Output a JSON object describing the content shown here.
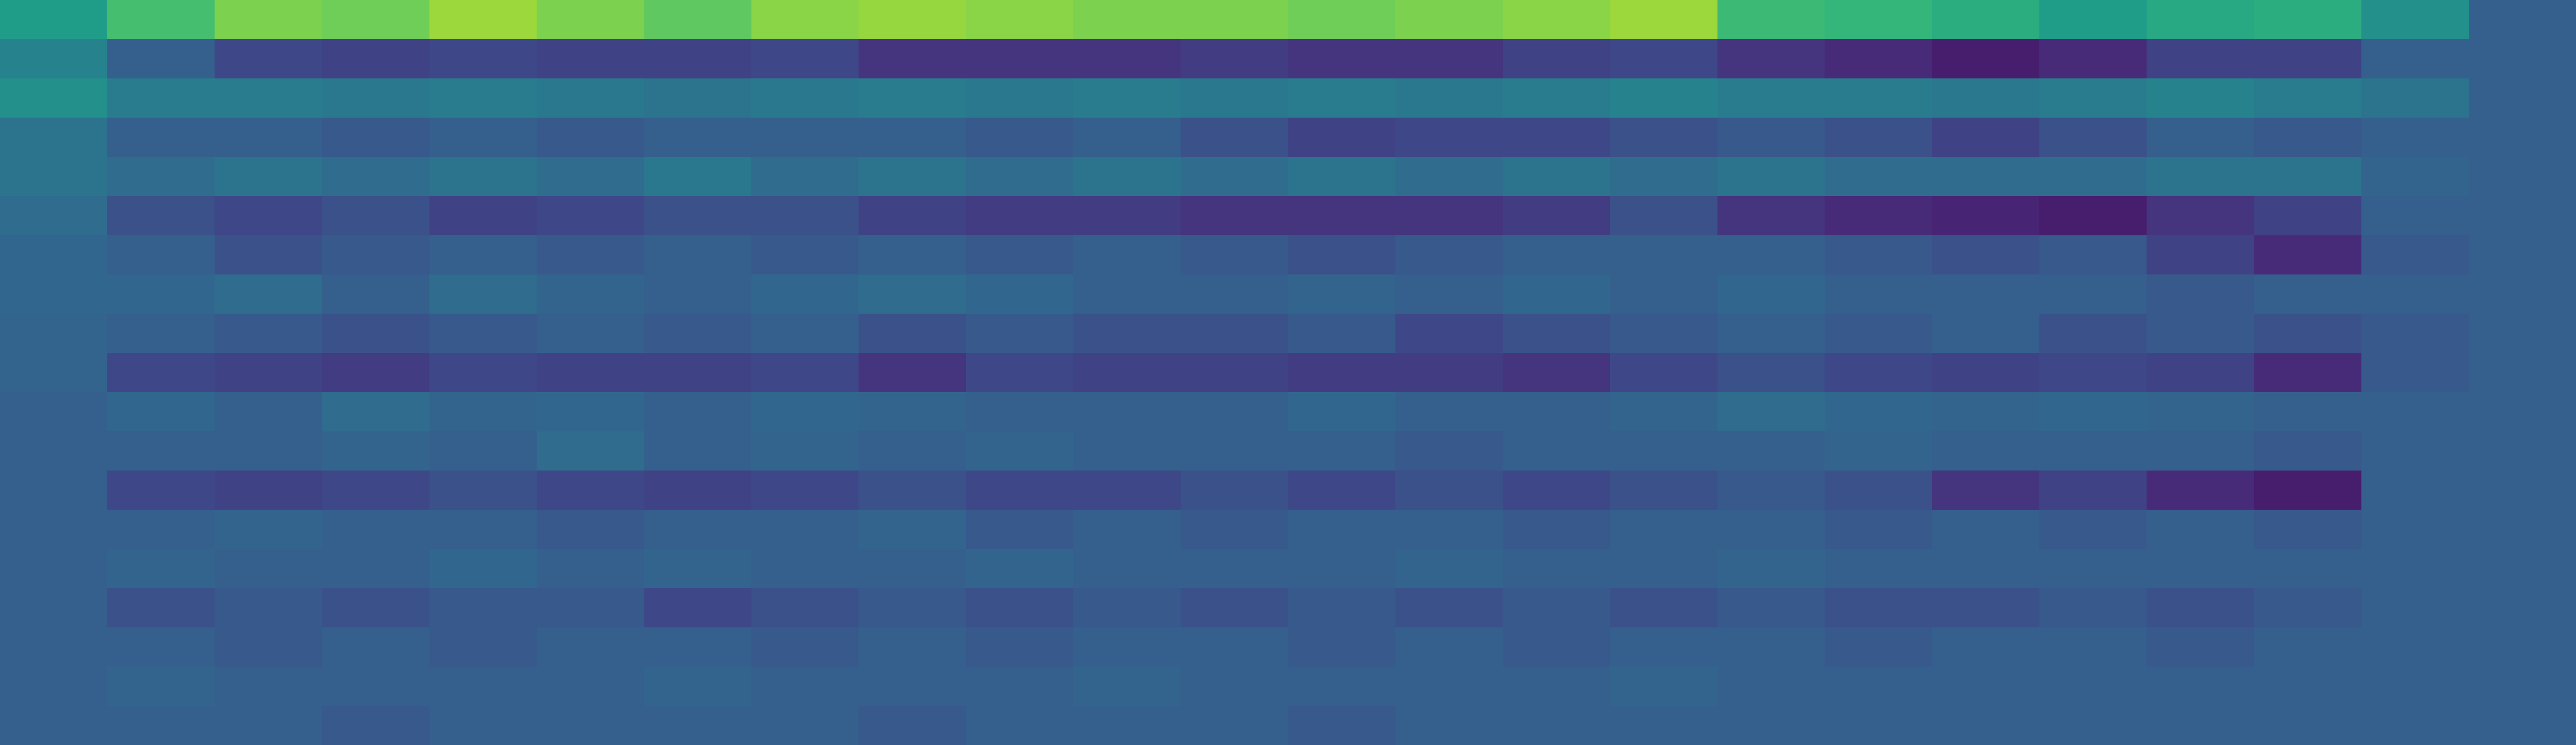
{
  "chart_data": {
    "type": "heatmap",
    "colormap": "viridis",
    "zlim": [
      0,
      1
    ],
    "values": [
      [
        0.55,
        0.7,
        0.8,
        0.78,
        0.85,
        0.8,
        0.75,
        0.82,
        0.84,
        0.82,
        0.8,
        0.8,
        0.78,
        0.8,
        0.82,
        0.85,
        0.68,
        0.66,
        0.62,
        0.55,
        0.6,
        0.62,
        0.5,
        0.3
      ],
      [
        0.45,
        0.3,
        0.22,
        0.2,
        0.22,
        0.2,
        0.2,
        0.22,
        0.15,
        0.15,
        0.15,
        0.18,
        0.15,
        0.15,
        0.2,
        0.22,
        0.15,
        0.12,
        0.08,
        0.12,
        0.2,
        0.2,
        0.3,
        0.3
      ],
      [
        0.5,
        0.42,
        0.42,
        0.4,
        0.42,
        0.4,
        0.38,
        0.4,
        0.42,
        0.4,
        0.42,
        0.4,
        0.42,
        0.4,
        0.42,
        0.45,
        0.42,
        0.42,
        0.4,
        0.42,
        0.45,
        0.42,
        0.38,
        0.3
      ],
      [
        0.38,
        0.3,
        0.3,
        0.28,
        0.3,
        0.28,
        0.3,
        0.3,
        0.3,
        0.28,
        0.3,
        0.25,
        0.2,
        0.22,
        0.22,
        0.25,
        0.28,
        0.25,
        0.2,
        0.25,
        0.3,
        0.28,
        0.3,
        0.3
      ],
      [
        0.38,
        0.35,
        0.38,
        0.35,
        0.38,
        0.35,
        0.4,
        0.35,
        0.38,
        0.35,
        0.38,
        0.35,
        0.38,
        0.35,
        0.38,
        0.35,
        0.38,
        0.35,
        0.35,
        0.35,
        0.38,
        0.38,
        0.32,
        0.3
      ],
      [
        0.35,
        0.25,
        0.22,
        0.25,
        0.2,
        0.22,
        0.25,
        0.25,
        0.2,
        0.18,
        0.18,
        0.15,
        0.15,
        0.15,
        0.18,
        0.25,
        0.15,
        0.12,
        0.1,
        0.08,
        0.15,
        0.2,
        0.3,
        0.3
      ],
      [
        0.33,
        0.3,
        0.25,
        0.28,
        0.3,
        0.28,
        0.3,
        0.28,
        0.3,
        0.28,
        0.3,
        0.28,
        0.25,
        0.28,
        0.3,
        0.3,
        0.3,
        0.28,
        0.25,
        0.28,
        0.2,
        0.12,
        0.28,
        0.3
      ],
      [
        0.33,
        0.33,
        0.35,
        0.3,
        0.35,
        0.32,
        0.3,
        0.33,
        0.35,
        0.33,
        0.3,
        0.3,
        0.32,
        0.3,
        0.33,
        0.3,
        0.33,
        0.3,
        0.3,
        0.3,
        0.28,
        0.3,
        0.3,
        0.3
      ],
      [
        0.32,
        0.3,
        0.28,
        0.25,
        0.28,
        0.3,
        0.28,
        0.3,
        0.25,
        0.28,
        0.25,
        0.25,
        0.28,
        0.22,
        0.25,
        0.28,
        0.3,
        0.28,
        0.3,
        0.25,
        0.28,
        0.25,
        0.28,
        0.3
      ],
      [
        0.32,
        0.22,
        0.2,
        0.18,
        0.22,
        0.2,
        0.2,
        0.22,
        0.15,
        0.22,
        0.2,
        0.2,
        0.18,
        0.18,
        0.15,
        0.22,
        0.25,
        0.22,
        0.2,
        0.22,
        0.2,
        0.12,
        0.28,
        0.3
      ],
      [
        0.3,
        0.33,
        0.3,
        0.35,
        0.32,
        0.33,
        0.3,
        0.33,
        0.32,
        0.3,
        0.3,
        0.3,
        0.33,
        0.3,
        0.3,
        0.32,
        0.35,
        0.33,
        0.32,
        0.33,
        0.32,
        0.3,
        0.3,
        0.3
      ],
      [
        0.3,
        0.3,
        0.3,
        0.32,
        0.3,
        0.35,
        0.3,
        0.32,
        0.3,
        0.32,
        0.3,
        0.3,
        0.3,
        0.28,
        0.3,
        0.3,
        0.3,
        0.32,
        0.3,
        0.3,
        0.3,
        0.28,
        0.3,
        0.3
      ],
      [
        0.3,
        0.22,
        0.2,
        0.22,
        0.25,
        0.22,
        0.2,
        0.22,
        0.25,
        0.22,
        0.22,
        0.25,
        0.22,
        0.25,
        0.22,
        0.25,
        0.28,
        0.25,
        0.15,
        0.2,
        0.12,
        0.08,
        0.3,
        0.3
      ],
      [
        0.3,
        0.3,
        0.32,
        0.3,
        0.3,
        0.28,
        0.3,
        0.3,
        0.32,
        0.28,
        0.3,
        0.28,
        0.3,
        0.3,
        0.28,
        0.3,
        0.3,
        0.28,
        0.3,
        0.28,
        0.3,
        0.28,
        0.3,
        0.3
      ],
      [
        0.3,
        0.32,
        0.3,
        0.3,
        0.33,
        0.3,
        0.32,
        0.3,
        0.3,
        0.32,
        0.3,
        0.3,
        0.3,
        0.32,
        0.3,
        0.3,
        0.32,
        0.3,
        0.3,
        0.3,
        0.3,
        0.3,
        0.3,
        0.3
      ],
      [
        0.3,
        0.25,
        0.28,
        0.25,
        0.28,
        0.28,
        0.22,
        0.25,
        0.28,
        0.25,
        0.28,
        0.25,
        0.28,
        0.25,
        0.28,
        0.25,
        0.28,
        0.25,
        0.25,
        0.28,
        0.25,
        0.28,
        0.3,
        0.3
      ],
      [
        0.3,
        0.3,
        0.28,
        0.3,
        0.28,
        0.3,
        0.3,
        0.28,
        0.3,
        0.28,
        0.3,
        0.3,
        0.28,
        0.3,
        0.28,
        0.3,
        0.3,
        0.28,
        0.3,
        0.3,
        0.28,
        0.3,
        0.3,
        0.3
      ],
      [
        0.3,
        0.32,
        0.3,
        0.3,
        0.3,
        0.3,
        0.32,
        0.3,
        0.3,
        0.3,
        0.32,
        0.3,
        0.3,
        0.3,
        0.3,
        0.32,
        0.3,
        0.3,
        0.3,
        0.3,
        0.3,
        0.3,
        0.3,
        0.3
      ],
      [
        0.3,
        0.3,
        0.3,
        0.28,
        0.3,
        0.3,
        0.3,
        0.3,
        0.28,
        0.3,
        0.3,
        0.3,
        0.28,
        0.3,
        0.3,
        0.3,
        0.3,
        0.3,
        0.3,
        0.3,
        0.3,
        0.3,
        0.3,
        0.3
      ]
    ]
  }
}
